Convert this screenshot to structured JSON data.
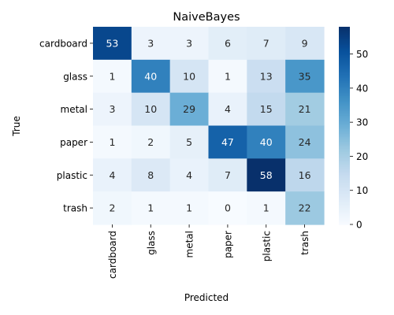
{
  "chart_data": {
    "type": "heatmap",
    "title": "NaiveBayes",
    "xlabel": "Predicted",
    "ylabel": "True",
    "x_categories": [
      "cardboard",
      "glass",
      "metal",
      "paper",
      "plastic",
      "trash"
    ],
    "y_categories": [
      "cardboard",
      "glass",
      "metal",
      "paper",
      "plastic",
      "trash"
    ],
    "values": [
      [
        53,
        3,
        3,
        6,
        7,
        9
      ],
      [
        1,
        40,
        10,
        1,
        13,
        35
      ],
      [
        3,
        10,
        29,
        4,
        15,
        21
      ],
      [
        1,
        2,
        5,
        47,
        40,
        24
      ],
      [
        4,
        8,
        4,
        7,
        58,
        16
      ],
      [
        2,
        1,
        1,
        0,
        1,
        22
      ]
    ],
    "colormap": "Blues",
    "vmin": 0,
    "vmax": 58,
    "colorbar_ticks": [
      0,
      10,
      20,
      30,
      40,
      50
    ],
    "annotations": true,
    "grid": false,
    "legend": "colorbar-right"
  }
}
